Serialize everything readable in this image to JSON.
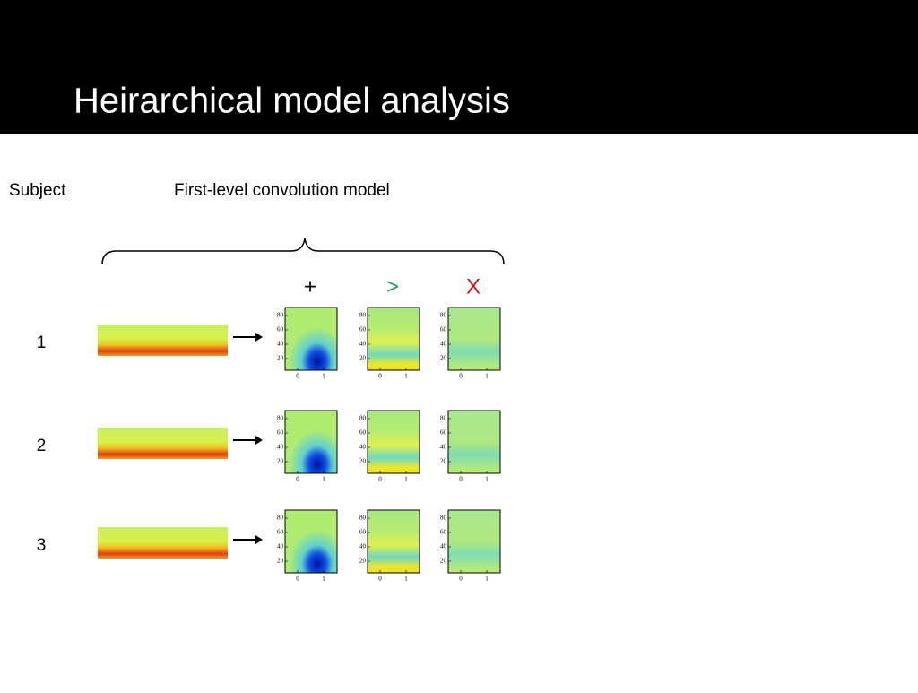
{
  "header": {
    "title": "Heirarchical model analysis"
  },
  "columns": {
    "subject": "Subject",
    "model": "First-level convolution model"
  },
  "conditions": [
    {
      "label": "+",
      "color": "#000000"
    },
    {
      "label": ">",
      "color": "#1a9e5a"
    },
    {
      "label": "X",
      "color": "#e01010"
    }
  ],
  "subjects": [
    "1",
    "2",
    "3"
  ],
  "plot_axes": {
    "yticks": [
      80,
      60,
      40,
      20
    ],
    "xticks": [
      0,
      1
    ]
  }
}
